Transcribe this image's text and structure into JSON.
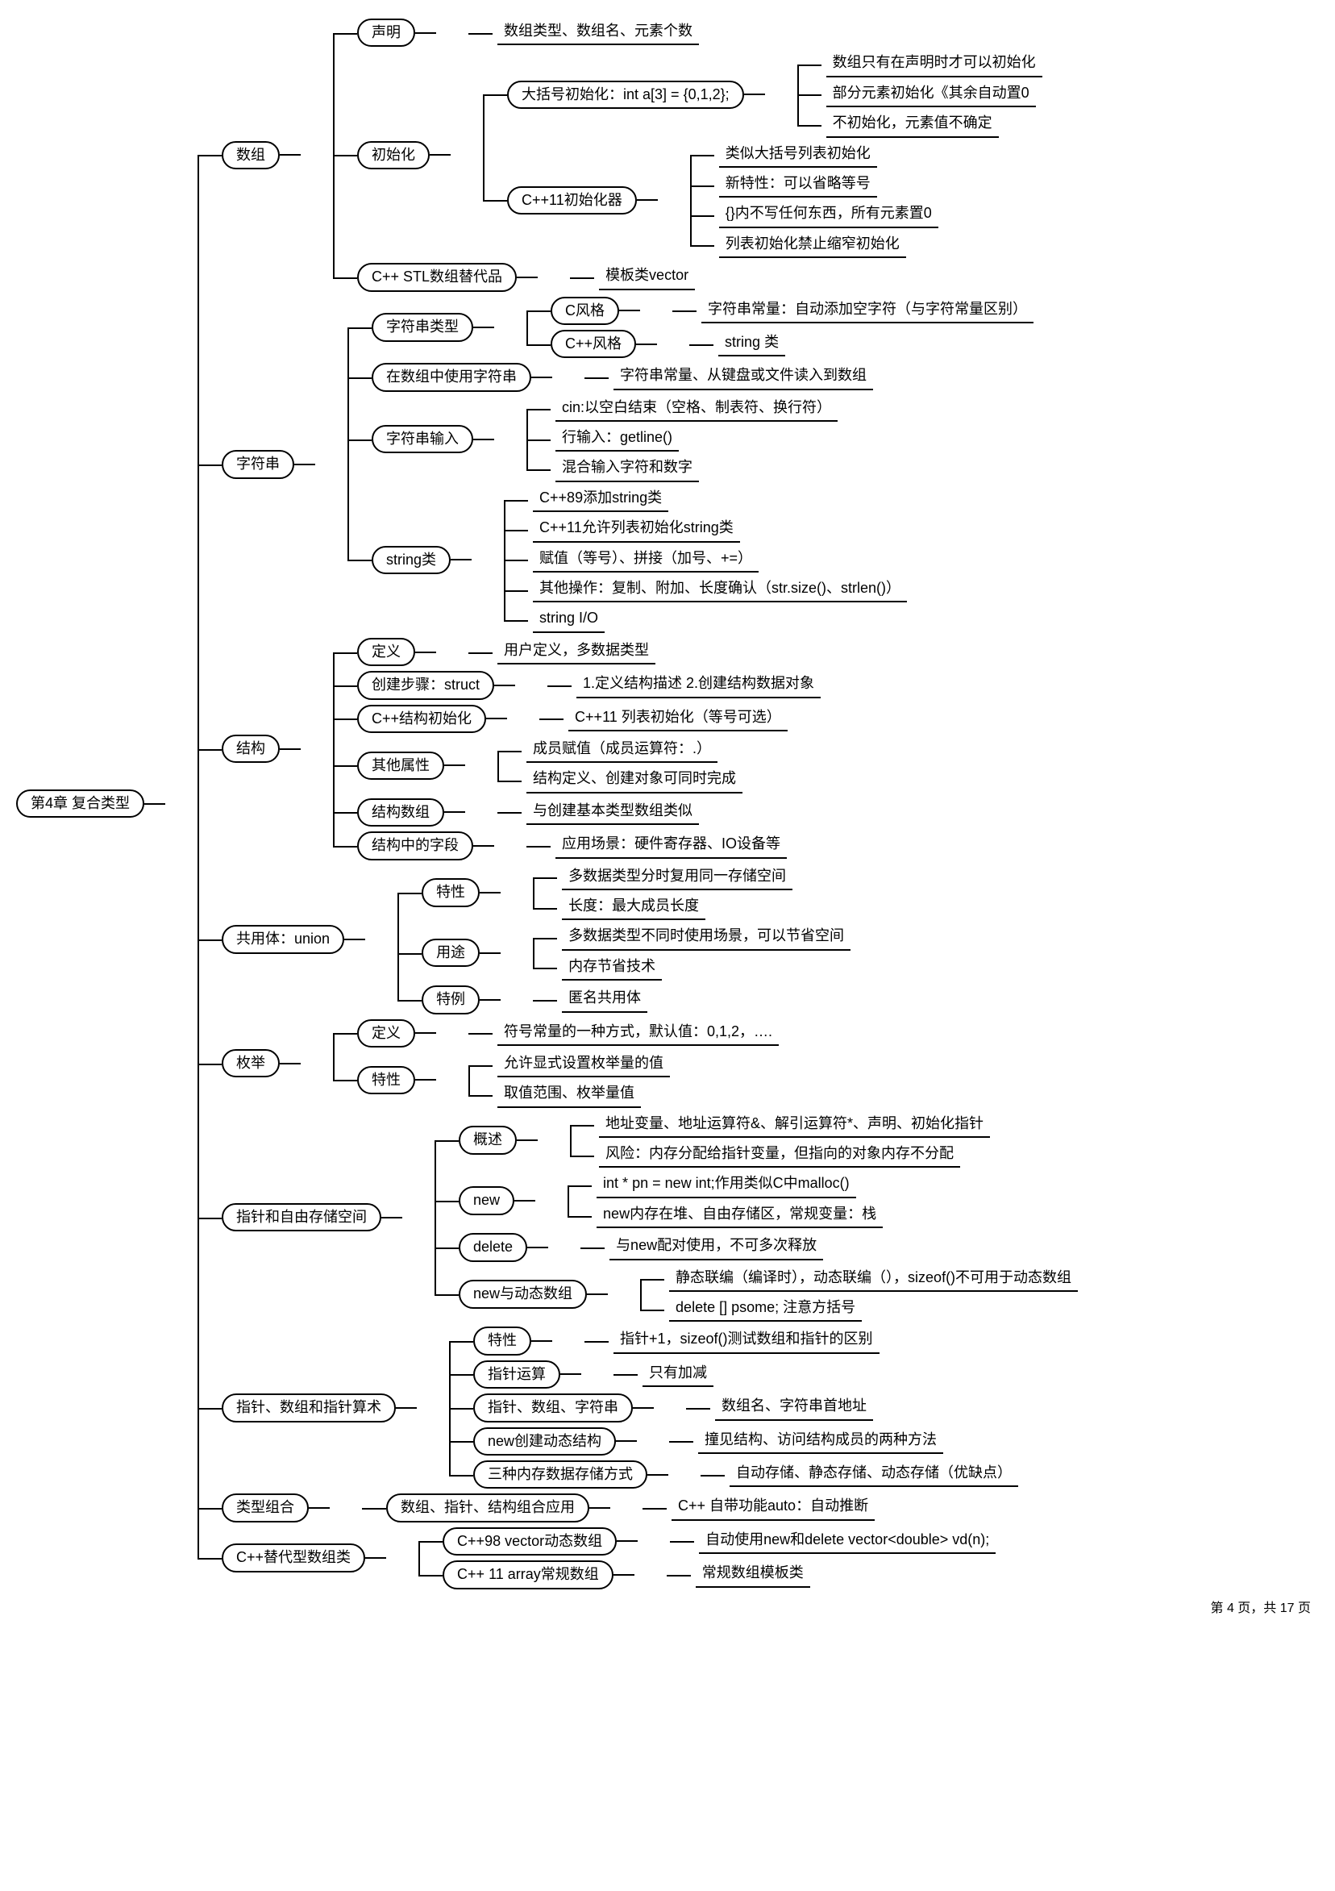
{
  "page_footer": "第 4 页，共 17 页",
  "colors": {
    "line": "#000000",
    "bg": "#ffffff",
    "text": "#000000"
  },
  "font_size_pt": 14,
  "root": {
    "label": "第4章 复合类型",
    "children": [
      {
        "label": "数组",
        "children": [
          {
            "label": "声明",
            "children": [
              {
                "leaf": "数组类型、数组名、元素个数"
              }
            ]
          },
          {
            "label": "初始化",
            "children": [
              {
                "label": "大括号初始化：int a[3] = {0,1,2};",
                "children": [
                  {
                    "leaf": "数组只有在声明时才可以初始化"
                  },
                  {
                    "leaf": "部分元素初始化《其余自动置0"
                  },
                  {
                    "leaf": "不初始化，元素值不确定"
                  }
                ]
              },
              {
                "label": "C++11初始化器",
                "children": [
                  {
                    "leaf": "类似大括号列表初始化"
                  },
                  {
                    "leaf": "新特性：可以省略等号"
                  },
                  {
                    "leaf": "{}内不写任何东西，所有元素置0"
                  },
                  {
                    "leaf": "列表初始化禁止缩窄初始化"
                  }
                ]
              }
            ]
          },
          {
            "label": "C++ STL数组替代品",
            "children": [
              {
                "leaf": "模板类vector"
              }
            ]
          }
        ]
      },
      {
        "label": "字符串",
        "children": [
          {
            "label": "字符串类型",
            "children": [
              {
                "label": "C风格",
                "children": [
                  {
                    "leaf": "字符串常量：自动添加空字符（与字符常量区别）"
                  }
                ]
              },
              {
                "label": "C++风格",
                "children": [
                  {
                    "leaf": "string 类"
                  }
                ]
              }
            ]
          },
          {
            "label": "在数组中使用字符串",
            "children": [
              {
                "leaf": "字符串常量、从键盘或文件读入到数组"
              }
            ]
          },
          {
            "label": "字符串输入",
            "children": [
              {
                "leaf": "cin:以空白结束（空格、制表符、换行符）"
              },
              {
                "leaf": "行输入：getline()"
              },
              {
                "leaf": "混合输入字符和数字"
              }
            ]
          },
          {
            "label": "string类",
            "children": [
              {
                "leaf": "C++89添加string类"
              },
              {
                "leaf": "C++11允许列表初始化string类"
              },
              {
                "leaf": "赋值（等号）、拼接（加号、+=）"
              },
              {
                "leaf": "其他操作：复制、附加、长度确认（str.size()、strlen()）"
              },
              {
                "leaf": "string I/O"
              }
            ]
          }
        ]
      },
      {
        "label": "结构",
        "children": [
          {
            "label": "定义",
            "children": [
              {
                "leaf": "用户定义，多数据类型"
              }
            ]
          },
          {
            "label": "创建步骤：struct",
            "children": [
              {
                "leaf": "1.定义结构描述 2.创建结构数据对象"
              }
            ]
          },
          {
            "label": "C++结构初始化",
            "children": [
              {
                "leaf": "C++11 列表初始化（等号可选）"
              }
            ]
          },
          {
            "label": "其他属性",
            "children": [
              {
                "leaf": "成员赋值（成员运算符：.）"
              },
              {
                "leaf": "结构定义、创建对象可同时完成"
              }
            ]
          },
          {
            "label": "结构数组",
            "children": [
              {
                "leaf": "与创建基本类型数组类似"
              }
            ]
          },
          {
            "label": "结构中的字段",
            "children": [
              {
                "leaf": "应用场景：硬件寄存器、IO设备等"
              }
            ]
          }
        ]
      },
      {
        "label": "共用体：union",
        "children": [
          {
            "label": "特性",
            "children": [
              {
                "leaf": "多数据类型分时复用同一存储空间"
              },
              {
                "leaf": "长度：最大成员长度"
              }
            ]
          },
          {
            "label": "用途",
            "children": [
              {
                "leaf": "多数据类型不同时使用场景，可以节省空间"
              },
              {
                "leaf": "内存节省技术"
              }
            ]
          },
          {
            "label": "特例",
            "children": [
              {
                "leaf": "匿名共用体"
              }
            ]
          }
        ]
      },
      {
        "label": "枚举",
        "children": [
          {
            "label": "定义",
            "children": [
              {
                "leaf": "符号常量的一种方式，默认值：0,1,2，…."
              }
            ]
          },
          {
            "label": "特性",
            "children": [
              {
                "leaf": "允许显式设置枚举量的值"
              },
              {
                "leaf": "取值范围、枚举量值"
              }
            ]
          }
        ]
      },
      {
        "label": "指针和自由存储空间",
        "children": [
          {
            "label": "概述",
            "children": [
              {
                "leaf": "地址变量、地址运算符&、解引运算符*、声明、初始化指针"
              },
              {
                "leaf": "风险：内存分配给指针变量，但指向的对象内存不分配"
              }
            ]
          },
          {
            "label": "new",
            "children": [
              {
                "leaf": "int * pn = new int;作用类似C中malloc()"
              },
              {
                "leaf": "new内存在堆、自由存储区，常规变量：栈"
              }
            ]
          },
          {
            "label": "delete",
            "children": [
              {
                "leaf": "与new配对使用，不可多次释放"
              }
            ]
          },
          {
            "label": "new与动态数组",
            "children": [
              {
                "leaf": "静态联编（编译时），动态联编（），sizeof()不可用于动态数组"
              },
              {
                "leaf": "delete [] psome; 注意方括号"
              }
            ]
          }
        ]
      },
      {
        "label": "指针、数组和指针算术",
        "children": [
          {
            "label": "特性",
            "children": [
              {
                "leaf": "指针+1，sizeof()测试数组和指针的区别"
              }
            ]
          },
          {
            "label": "指针运算",
            "children": [
              {
                "leaf": "只有加减"
              }
            ]
          },
          {
            "label": "指针、数组、字符串",
            "children": [
              {
                "leaf": "数组名、字符串首地址"
              }
            ]
          },
          {
            "label": "new创建动态结构",
            "children": [
              {
                "leaf": "撞见结构、访问结构成员的两种方法"
              }
            ]
          },
          {
            "label": "三种内存数据存储方式",
            "children": [
              {
                "leaf": "自动存储、静态存储、动态存储（优缺点）"
              }
            ]
          }
        ]
      },
      {
        "label": "类型组合",
        "children": [
          {
            "label": "数组、指针、结构组合应用",
            "children": [
              {
                "leaf": "C++ 自带功能auto：自动推断"
              }
            ]
          }
        ]
      },
      {
        "label": "C++替代型数组类",
        "children": [
          {
            "label": "C++98 vector动态数组",
            "children": [
              {
                "leaf": "自动使用new和delete  vector<double> vd(n);"
              }
            ]
          },
          {
            "label": "C++ 11 array常规数组",
            "children": [
              {
                "leaf": "常规数组模板类"
              }
            ]
          }
        ]
      }
    ]
  }
}
